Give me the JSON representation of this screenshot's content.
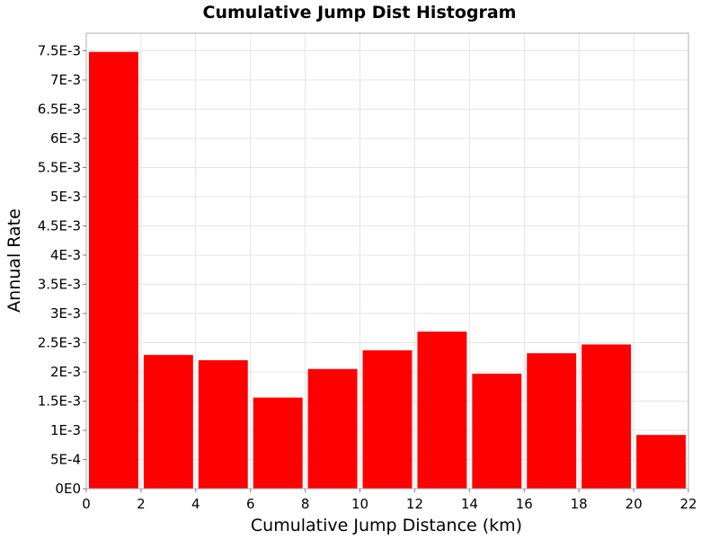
{
  "chart_data": {
    "type": "bar",
    "title": "Cumulative Jump Dist Histogram",
    "xlabel": "Cumulative Jump Distance (km)",
    "ylabel": "Annual Rate",
    "xlim": [
      0,
      22
    ],
    "ylim": [
      0,
      0.0078
    ],
    "grid": true,
    "bar_color": "#ff0000",
    "bin_width": 2,
    "bins": [
      {
        "x_start": 0,
        "x_end": 2,
        "value": 0.00748
      },
      {
        "x_start": 2,
        "x_end": 4,
        "value": 0.00229
      },
      {
        "x_start": 4,
        "x_end": 6,
        "value": 0.0022
      },
      {
        "x_start": 6,
        "x_end": 8,
        "value": 0.00156
      },
      {
        "x_start": 8,
        "x_end": 10,
        "value": 0.00205
      },
      {
        "x_start": 10,
        "x_end": 12,
        "value": 0.00237
      },
      {
        "x_start": 12,
        "x_end": 14,
        "value": 0.00269
      },
      {
        "x_start": 14,
        "x_end": 16,
        "value": 0.00197
      },
      {
        "x_start": 16,
        "x_end": 18,
        "value": 0.00232
      },
      {
        "x_start": 18,
        "x_end": 20,
        "value": 0.00247
      },
      {
        "x_start": 20,
        "x_end": 22,
        "value": 0.00092
      }
    ],
    "x_ticks": [
      {
        "value": 0,
        "label": "0"
      },
      {
        "value": 2,
        "label": "2"
      },
      {
        "value": 4,
        "label": "4"
      },
      {
        "value": 6,
        "label": "6"
      },
      {
        "value": 8,
        "label": "8"
      },
      {
        "value": 10,
        "label": "10"
      },
      {
        "value": 12,
        "label": "12"
      },
      {
        "value": 14,
        "label": "14"
      },
      {
        "value": 16,
        "label": "16"
      },
      {
        "value": 18,
        "label": "18"
      },
      {
        "value": 20,
        "label": "20"
      },
      {
        "value": 22,
        "label": "22"
      }
    ],
    "y_ticks": [
      {
        "value": 0,
        "label": "0E0"
      },
      {
        "value": 0.0005,
        "label": "5E-4"
      },
      {
        "value": 0.001,
        "label": "1E-3"
      },
      {
        "value": 0.0015,
        "label": "1.5E-3"
      },
      {
        "value": 0.002,
        "label": "2E-3"
      },
      {
        "value": 0.0025,
        "label": "2.5E-3"
      },
      {
        "value": 0.003,
        "label": "3E-3"
      },
      {
        "value": 0.0035,
        "label": "3.5E-3"
      },
      {
        "value": 0.004,
        "label": "4E-3"
      },
      {
        "value": 0.0045,
        "label": "4.5E-3"
      },
      {
        "value": 0.005,
        "label": "5E-3"
      },
      {
        "value": 0.0055,
        "label": "5.5E-3"
      },
      {
        "value": 0.006,
        "label": "6E-3"
      },
      {
        "value": 0.0065,
        "label": "6.5E-3"
      },
      {
        "value": 0.007,
        "label": "7E-3"
      },
      {
        "value": 0.0075,
        "label": "7.5E-3"
      }
    ]
  }
}
